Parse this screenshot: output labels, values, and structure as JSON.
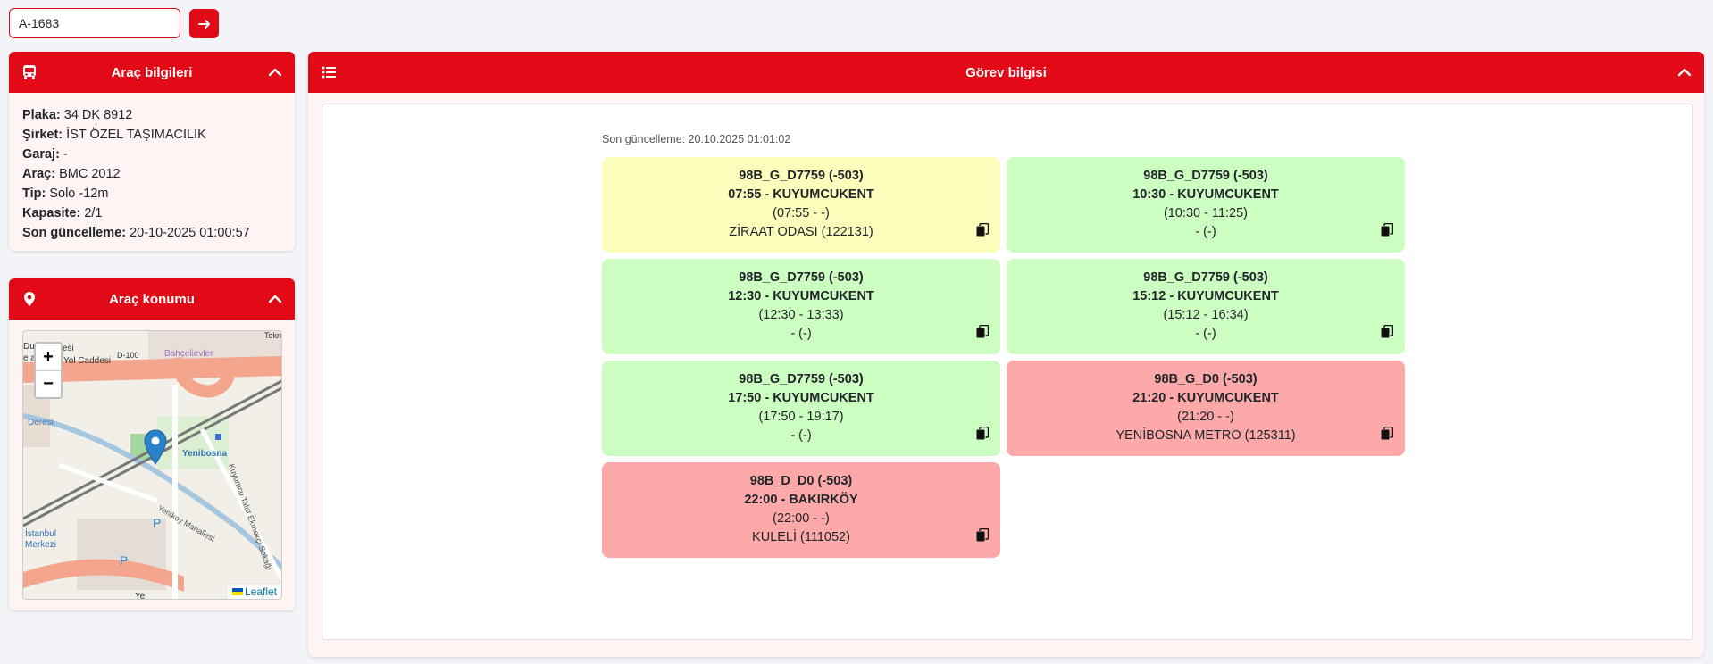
{
  "search": {
    "value": "A-1683"
  },
  "vehicle_card": {
    "title": "Araç bilgileri",
    "rows": [
      {
        "label": "Plaka:",
        "value": "34 DK 8912"
      },
      {
        "label": "Şirket:",
        "value": "İST ÖZEL TAŞIMACILIK"
      },
      {
        "label": "Garaj:",
        "value": "-"
      },
      {
        "label": "Araç:",
        "value": "BMC 2012"
      },
      {
        "label": "Tip:",
        "value": "Solo -12m"
      },
      {
        "label": "Kapasite:",
        "value": "2/1"
      },
      {
        "label": "Son güncelleme:",
        "value": "20-10-2025 01:00:57"
      }
    ]
  },
  "location_card": {
    "title": "Araç konumu",
    "map": {
      "zoom_in": "+",
      "zoom_out": "−",
      "attribution": "Leaflet",
      "labels": [
        "Dur",
        "Çaddesi",
        "e a",
        "Yol Caddesi",
        "D-100",
        "Bahçelievler",
        "Tekn",
        "Yenibosna",
        "Deresi",
        "İstanbul",
        "Merkezi",
        "Yenikoy Mahallesi",
        "Kuyumcu Talat Ekmekçi Sokağı",
        "P",
        "P",
        "Ye"
      ]
    }
  },
  "task_card": {
    "title": "Görev bilgisi",
    "updated": "Son güncelleme: 20.10.2025 01:01:02",
    "trips": [
      {
        "line": "98B_G_D7759 (-503)",
        "time": "07:55 - KUYUMCUKENT",
        "range": "(07:55 - -)",
        "stop": "ZİRAAT ODASI (122131)",
        "status": "yellow"
      },
      {
        "line": "98B_G_D7759 (-503)",
        "time": "10:30 - KUYUMCUKENT",
        "range": "(10:30 - 11:25)",
        "stop": "- (-)",
        "status": "green"
      },
      {
        "line": "98B_G_D7759 (-503)",
        "time": "12:30 - KUYUMCUKENT",
        "range": "(12:30 - 13:33)",
        "stop": "- (-)",
        "status": "green"
      },
      {
        "line": "98B_G_D7759 (-503)",
        "time": "15:12 - KUYUMCUKENT",
        "range": "(15:12 - 16:34)",
        "stop": "- (-)",
        "status": "green"
      },
      {
        "line": "98B_G_D7759 (-503)",
        "time": "17:50 - KUYUMCUKENT",
        "range": "(17:50 - 19:17)",
        "stop": "- (-)",
        "status": "green"
      },
      {
        "line": "98B_G_D0 (-503)",
        "time": "21:20 - KUYUMCUKENT",
        "range": "(21:20 - -)",
        "stop": "YENİBOSNA METRO (125311)",
        "status": "red"
      },
      {
        "line": "98B_D_D0 (-503)",
        "time": "22:00 - BAKIRKÖY",
        "range": "(22:00 - -)",
        "stop": "KULELİ (111052)",
        "status": "red"
      }
    ]
  },
  "colors": {
    "accent": "#e30a17",
    "yellow": "#fdfdbc",
    "green": "#ccfdc1",
    "red": "#fda9aa"
  }
}
